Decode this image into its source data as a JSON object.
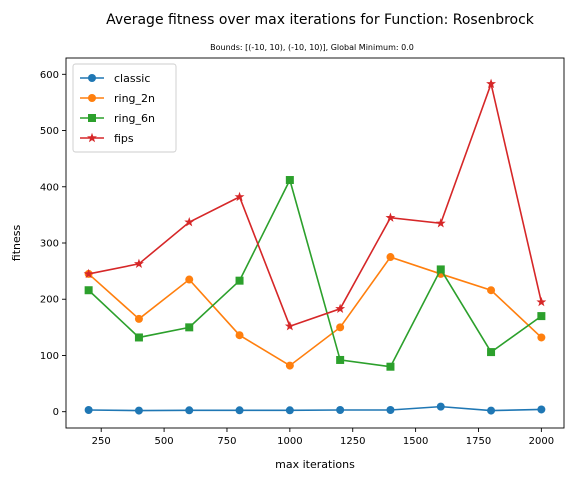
{
  "chart_data": {
    "type": "line",
    "title": "Average fitness over max iterations for Function: Rosenbrock",
    "subtitle": "Bounds: [(-10, 10), (-10, 10)], Global Minimum: 0.0",
    "xlabel": "max iterations",
    "ylabel": "fitness",
    "x": [
      200,
      400,
      600,
      800,
      1000,
      1200,
      1400,
      1600,
      1800,
      2000
    ],
    "xlim": [
      110,
      2090
    ],
    "ylim": [
      -29,
      629
    ],
    "xticks": [
      250,
      500,
      750,
      1000,
      1250,
      1500,
      1750,
      2000
    ],
    "yticks": [
      0,
      100,
      200,
      300,
      400,
      500,
      600
    ],
    "grid": false,
    "legend_position": "top-left",
    "series": [
      {
        "name": "classic",
        "color": "#1f77b4",
        "marker": "circle",
        "values": [
          3,
          2,
          2.5,
          2.5,
          2.5,
          3,
          3,
          9,
          2,
          4
        ]
      },
      {
        "name": "ring_2n",
        "color": "#ff7f0e",
        "marker": "circle",
        "values": [
          245,
          165,
          235,
          136,
          82,
          150,
          275,
          245,
          216,
          132
        ]
      },
      {
        "name": "ring_6n",
        "color": "#2ca02c",
        "marker": "square",
        "values": [
          216,
          132,
          150,
          233,
          412,
          92,
          80,
          253,
          106,
          170
        ]
      },
      {
        "name": "fips",
        "color": "#d62728",
        "marker": "star",
        "values": [
          245,
          263,
          337,
          382,
          152,
          183,
          345,
          335,
          583,
          195
        ]
      }
    ]
  }
}
